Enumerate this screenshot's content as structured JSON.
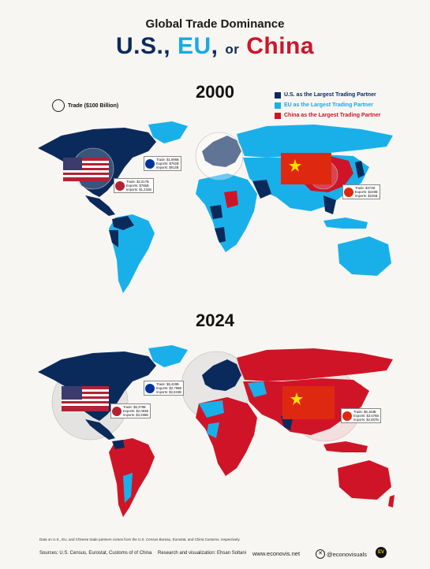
{
  "title": {
    "line1": "Global Trade Dominance",
    "us": "U.S.",
    "comma1": ",",
    "eu": "EU",
    "comma2": ",",
    "or": "or",
    "china": "China"
  },
  "legend": {
    "us": "U.S. as the Largest Trading Partner",
    "eu": "EU as the Largest Trading Partner",
    "china": "China as the Largest Trading Partner",
    "trade": "Trade ($100 Billion)"
  },
  "colors": {
    "us": "#0b2a5c",
    "eu": "#19b0ea",
    "china": "#d01428"
  },
  "maps": [
    {
      "year": "2000",
      "eu_stat": {
        "trade": "Trade:",
        "trade_v": "$1,696B",
        "exports": "Exports:",
        "exports_v": "$782B",
        "imports": "Imports:",
        "imports_v": "$913B"
      },
      "us_stat": {
        "trade": "Trade:",
        "trade_v": "$2,017B",
        "exports": "Exports:",
        "exports_v": "$785B",
        "imports": "Imports:",
        "imports_v": "$1,232B"
      },
      "cn_stat": {
        "trade": "Trade:",
        "trade_v": "$474B",
        "exports": "Exports:",
        "exports_v": "$249B",
        "imports": "Imports:",
        "imports_v": "$225B"
      }
    },
    {
      "year": "2024",
      "eu_stat": {
        "trade": "Trade:",
        "trade_v": "$5,428B",
        "exports": "Exports:",
        "exports_v": "$2,795B",
        "imports": "Imports:",
        "imports_v": "$2,633B"
      },
      "us_stat": {
        "trade": "Trade:",
        "trade_v": "$5,379B",
        "exports": "Exports:",
        "exports_v": "$2,084B",
        "imports": "Imports:",
        "imports_v": "$3,296B"
      },
      "cn_stat": {
        "trade": "Trade:",
        "trade_v": "$6,163B",
        "exports": "Exports:",
        "exports_v": "$3,575B",
        "imports": "Imports:",
        "imports_v": "$2,587B"
      }
    }
  ],
  "footnote": "Data on U.S., EU, and Chinese trade partners comes from the U.S. Census Bureau, Eurostat, and China Customs, respectively.",
  "footer": {
    "sources": "Sources: U.S. Census, Eurostat, Customs of of China",
    "research": "Research and visualization: Ehsan Soltani",
    "site": "www.econovis.net",
    "handle": "@econovisuals",
    "logo": "EV"
  }
}
